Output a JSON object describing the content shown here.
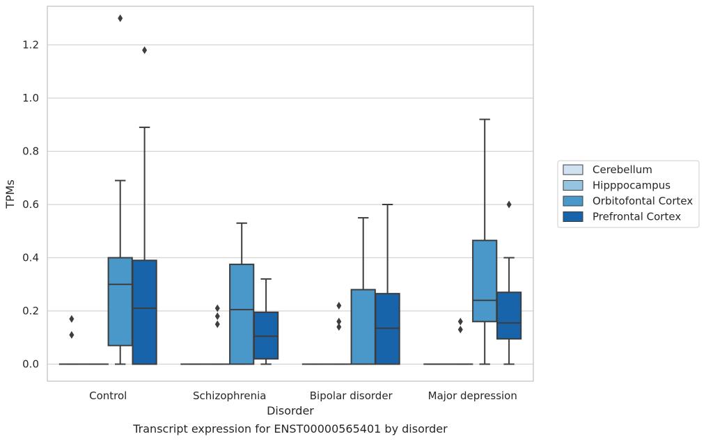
{
  "chart_data": {
    "type": "box",
    "caption": "Transcript expression for ENST00000565401 by disorder",
    "xlabel": "Disorder",
    "ylabel": "TPMs",
    "ylim": [
      -0.064,
      1.345
    ],
    "yticks": [
      "0.0",
      "0.2",
      "0.4",
      "0.6",
      "0.8",
      "1.0",
      "1.2"
    ],
    "grid": true,
    "legend_position": "right",
    "categories": [
      "Control",
      "Schizophrenia",
      "Bipolar disorder",
      "Major depression"
    ],
    "series": [
      {
        "name": "Cerebellum",
        "color": "#d0e1f2",
        "boxes": [
          {
            "category": "Control",
            "whislo": 0,
            "q1": 0,
            "med": 0,
            "q3": 0,
            "whishi": 0,
            "fliers": [
              0.11,
              0.17
            ]
          },
          {
            "category": "Schizophrenia",
            "whislo": 0,
            "q1": 0,
            "med": 0,
            "q3": 0,
            "whishi": 0,
            "fliers": []
          },
          {
            "category": "Bipolar disorder",
            "whislo": 0,
            "q1": 0,
            "med": 0,
            "q3": 0,
            "whishi": 0,
            "fliers": []
          },
          {
            "category": "Major depression",
            "whislo": 0,
            "q1": 0,
            "med": 0,
            "q3": 0,
            "whishi": 0,
            "fliers": []
          }
        ]
      },
      {
        "name": "Hipppocampus",
        "color": "#94c4df",
        "boxes": [
          {
            "category": "Control",
            "whislo": 0,
            "q1": 0,
            "med": 0,
            "q3": 0,
            "whishi": 0,
            "fliers": []
          },
          {
            "category": "Schizophrenia",
            "whislo": 0,
            "q1": 0,
            "med": 0,
            "q3": 0,
            "whishi": 0,
            "fliers": [
              0.15,
              0.18,
              0.21
            ]
          },
          {
            "category": "Bipolar disorder",
            "whislo": 0,
            "q1": 0,
            "med": 0,
            "q3": 0,
            "whishi": 0,
            "fliers": [
              0.14,
              0.16,
              0.22
            ]
          },
          {
            "category": "Major depression",
            "whislo": 0,
            "q1": 0,
            "med": 0,
            "q3": 0,
            "whishi": 0,
            "fliers": [
              0.13,
              0.16
            ]
          }
        ]
      },
      {
        "name": "Orbitofontal Cortex",
        "color": "#4a98c9",
        "boxes": [
          {
            "category": "Control",
            "whislo": 0,
            "q1": 0.07,
            "med": 0.3,
            "q3": 0.4,
            "whishi": 0.69,
            "fliers": [
              1.3
            ]
          },
          {
            "category": "Schizophrenia",
            "whislo": 0,
            "q1": 0,
            "med": 0.205,
            "q3": 0.375,
            "whishi": 0.53,
            "fliers": []
          },
          {
            "category": "Bipolar disorder",
            "whislo": 0,
            "q1": 0,
            "med": 0,
            "q3": 0.28,
            "whishi": 0.55,
            "fliers": []
          },
          {
            "category": "Major depression",
            "whislo": 0,
            "q1": 0.16,
            "med": 0.24,
            "q3": 0.465,
            "whishi": 0.92,
            "fliers": []
          }
        ]
      },
      {
        "name": "Prefrontal Cortex",
        "color": "#1764ab",
        "boxes": [
          {
            "category": "Control",
            "whislo": 0,
            "q1": 0,
            "med": 0.21,
            "q3": 0.39,
            "whishi": 0.89,
            "fliers": [
              1.18
            ]
          },
          {
            "category": "Schizophrenia",
            "whislo": 0,
            "q1": 0.02,
            "med": 0.105,
            "q3": 0.195,
            "whishi": 0.32,
            "fliers": []
          },
          {
            "category": "Bipolar disorder",
            "whislo": 0,
            "q1": 0,
            "med": 0.135,
            "q3": 0.265,
            "whishi": 0.6,
            "fliers": []
          },
          {
            "category": "Major depression",
            "whislo": 0,
            "q1": 0.095,
            "med": 0.155,
            "q3": 0.27,
            "whishi": 0.4,
            "fliers": [
              0.6
            ]
          }
        ]
      }
    ]
  }
}
